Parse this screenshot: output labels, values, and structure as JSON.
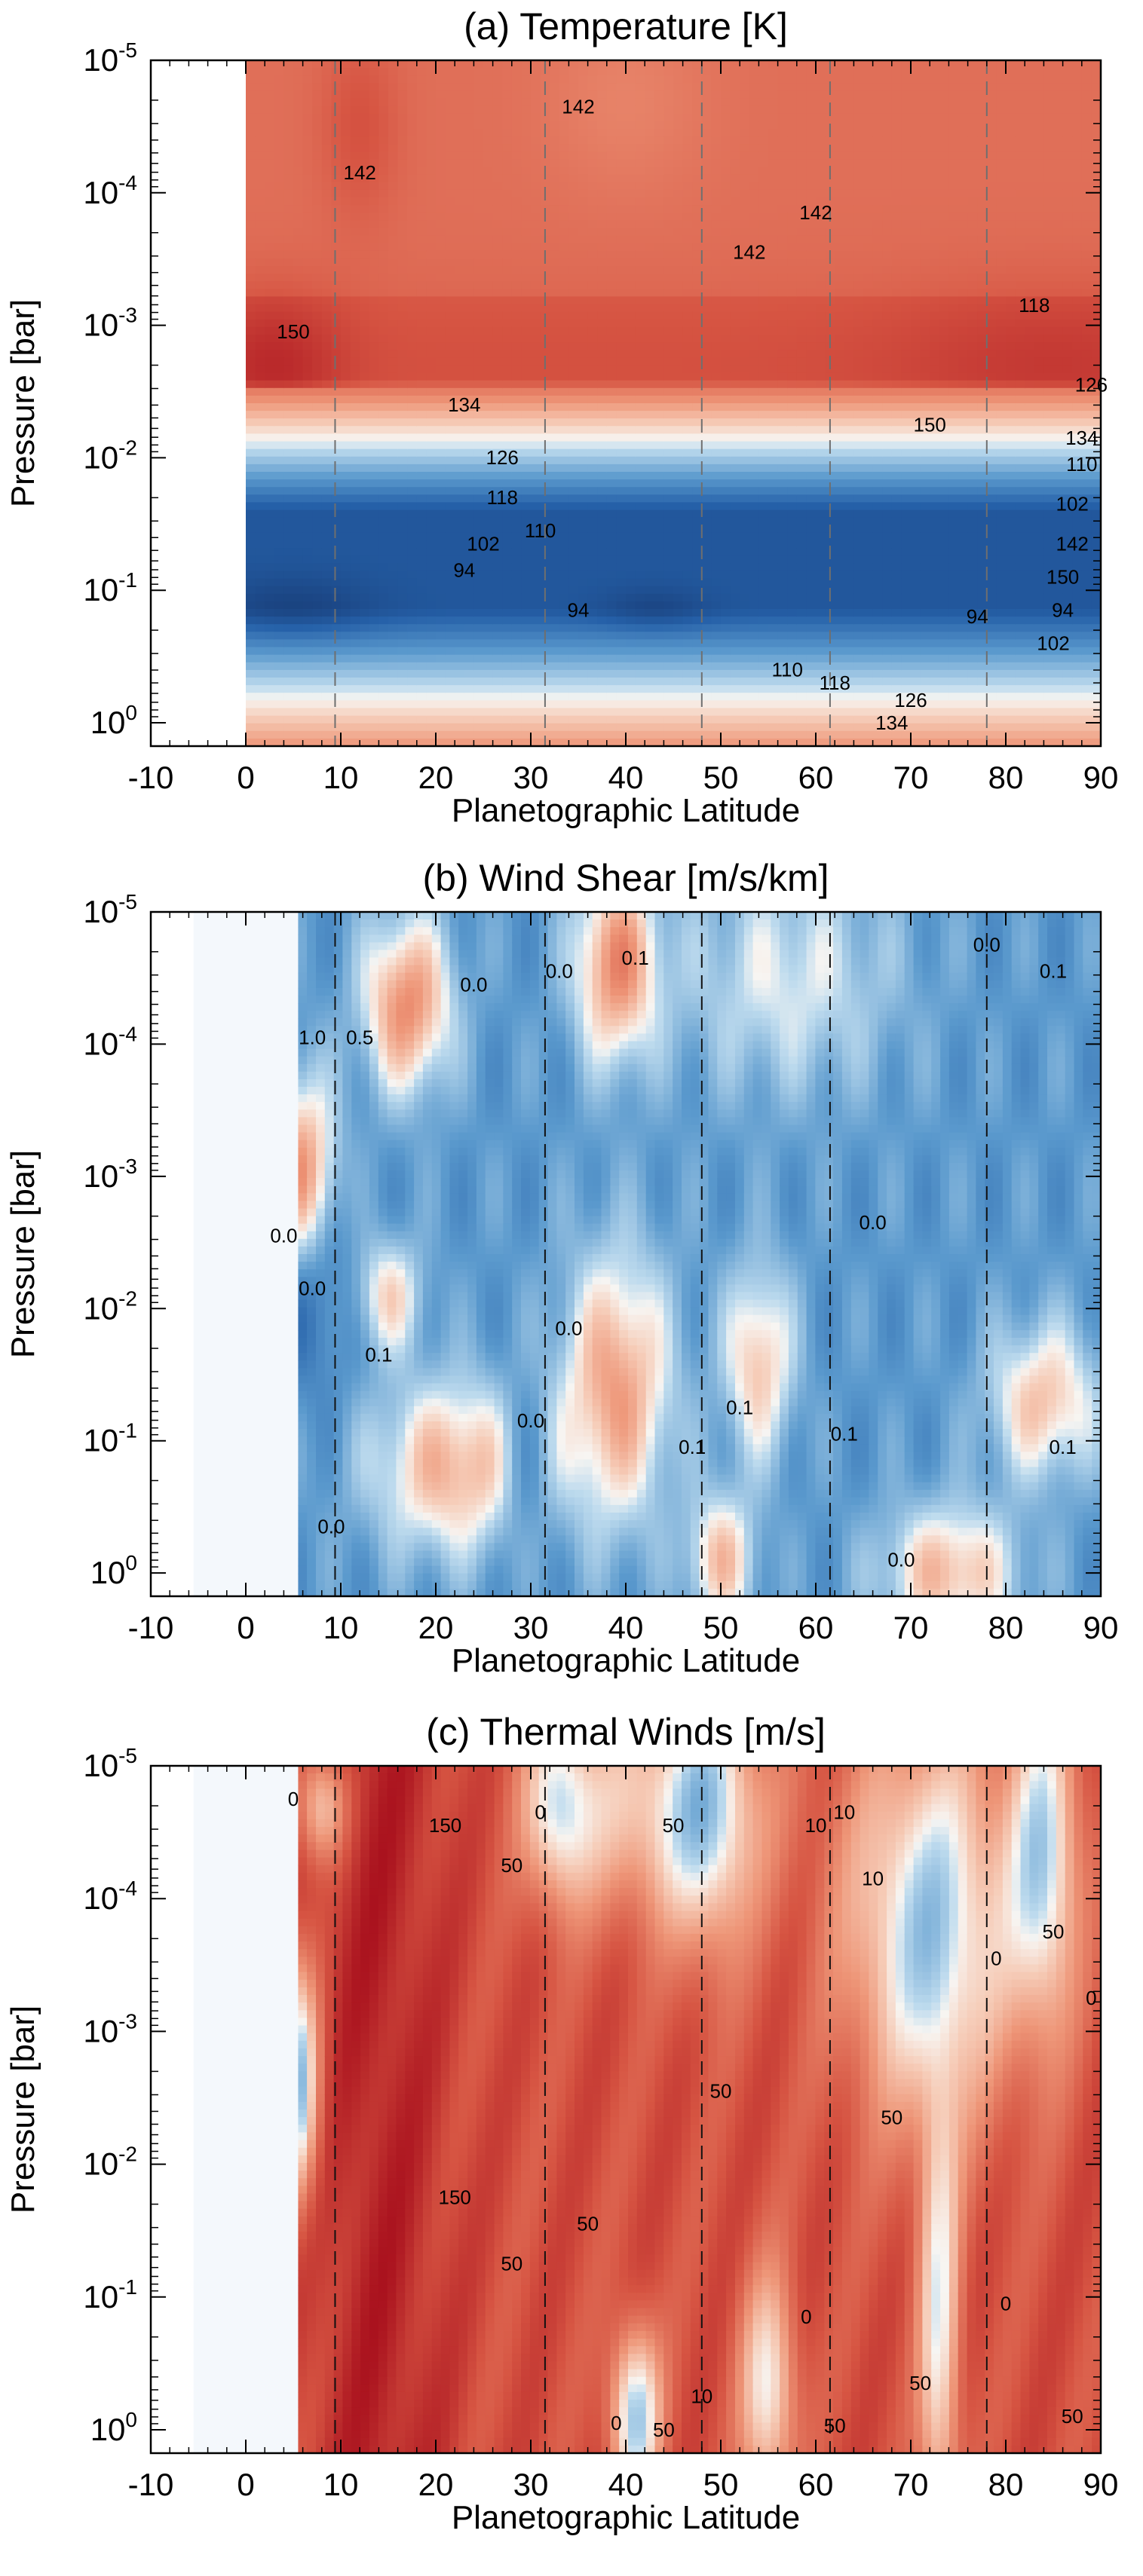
{
  "chart_data": [
    {
      "type": "heatmap",
      "title": "(a) Temperature [K]",
      "xlabel": "Planetographic Latitude",
      "ylabel": "Pressure [bar]",
      "xlim": [
        -10,
        90
      ],
      "ylim": [
        1.5,
        1e-05
      ],
      "yscale": "log",
      "xticks": [
        "-10",
        "0",
        "10",
        "20",
        "30",
        "40",
        "50",
        "60",
        "70",
        "80",
        "90"
      ],
      "yticks": [
        {
          "base": "10",
          "exp": "-5"
        },
        {
          "base": "10",
          "exp": "-4"
        },
        {
          "base": "10",
          "exp": "-3"
        },
        {
          "base": "10",
          "exp": "-2"
        },
        {
          "base": "10",
          "exp": "-1"
        },
        {
          "base": "10",
          "exp": "0"
        }
      ],
      "data_xrange": [
        0,
        90
      ],
      "reference_latitudes": [
        9.4,
        31.5,
        48,
        61.5,
        78
      ],
      "contour_labels": [
        "142",
        "142",
        "142",
        "142",
        "150",
        "150",
        "134",
        "126",
        "118",
        "110",
        "102",
        "94",
        "94",
        "94",
        "102",
        "110",
        "118",
        "126",
        "134",
        "134",
        "126",
        "118",
        "110",
        "102",
        "142",
        "150",
        "94"
      ],
      "colors": {
        "warm_max": "#b0121c",
        "warm_mid": "#e0705a",
        "warm_light": "#f2a98a",
        "neutral": "#f7efe8",
        "cool_light": "#cfe3f1",
        "cool_mid": "#4a90c8",
        "cool_max": "#14386e"
      }
    },
    {
      "type": "heatmap",
      "title": "(b) Wind Shear [m/s/km]",
      "xlabel": "Planetographic Latitude",
      "ylabel": "Pressure [bar]",
      "xlim": [
        -10,
        90
      ],
      "ylim": [
        1.5,
        1e-05
      ],
      "yscale": "log",
      "xticks": [
        "-10",
        "0",
        "10",
        "20",
        "30",
        "40",
        "50",
        "60",
        "70",
        "80",
        "90"
      ],
      "yticks": [
        {
          "base": "10",
          "exp": "-5"
        },
        {
          "base": "10",
          "exp": "-4"
        },
        {
          "base": "10",
          "exp": "-3"
        },
        {
          "base": "10",
          "exp": "-2"
        },
        {
          "base": "10",
          "exp": "-1"
        },
        {
          "base": "10",
          "exp": "0"
        }
      ],
      "data_xrange": [
        5.5,
        90
      ],
      "reference_latitudes": [
        9.4,
        31.5,
        48,
        61.5,
        78
      ],
      "contour_labels": [
        "1.0",
        "0.5",
        "0.0",
        "0.1",
        "0.0",
        "0.0",
        "0.1",
        "0.0",
        "0.0",
        "0.1",
        "0.0",
        "0.0",
        "0.1",
        "0.1",
        "0.1",
        "0.0",
        "0.1",
        "0.0",
        "0.0"
      ],
      "colors": {
        "positive": "#d9573f",
        "negative": "#4a86c4",
        "neutral": "#f3f7fb"
      }
    },
    {
      "type": "heatmap",
      "title": "(c) Thermal Winds [m/s]",
      "xlabel": "Planetographic Latitude",
      "ylabel": "Pressure [bar]",
      "xlim": [
        -10,
        90
      ],
      "ylim": [
        1.5,
        1e-05
      ],
      "yscale": "log",
      "xticks": [
        "-10",
        "0",
        "10",
        "20",
        "30",
        "40",
        "50",
        "60",
        "70",
        "80",
        "90"
      ],
      "yticks": [
        {
          "base": "10",
          "exp": "-5"
        },
        {
          "base": "10",
          "exp": "-4"
        },
        {
          "base": "10",
          "exp": "-3"
        },
        {
          "base": "10",
          "exp": "-2"
        },
        {
          "base": "10",
          "exp": "-1"
        },
        {
          "base": "10",
          "exp": "0"
        }
      ],
      "data_xrange": [
        5.5,
        90
      ],
      "reference_latitudes": [
        9.4,
        31.5,
        48,
        61.5,
        78
      ],
      "contour_labels": [
        "0",
        "150",
        "50",
        "50",
        "0",
        "10",
        "10",
        "0",
        "10",
        "50",
        "150",
        "50",
        "50",
        "50",
        "50",
        "0",
        "10",
        "0",
        "50",
        "50",
        "50",
        "0",
        "0",
        "50"
      ],
      "colors": {
        "positive": "#b3221f",
        "negative": "#3d7fc0",
        "neutral": "#f6f2ee"
      }
    }
  ]
}
